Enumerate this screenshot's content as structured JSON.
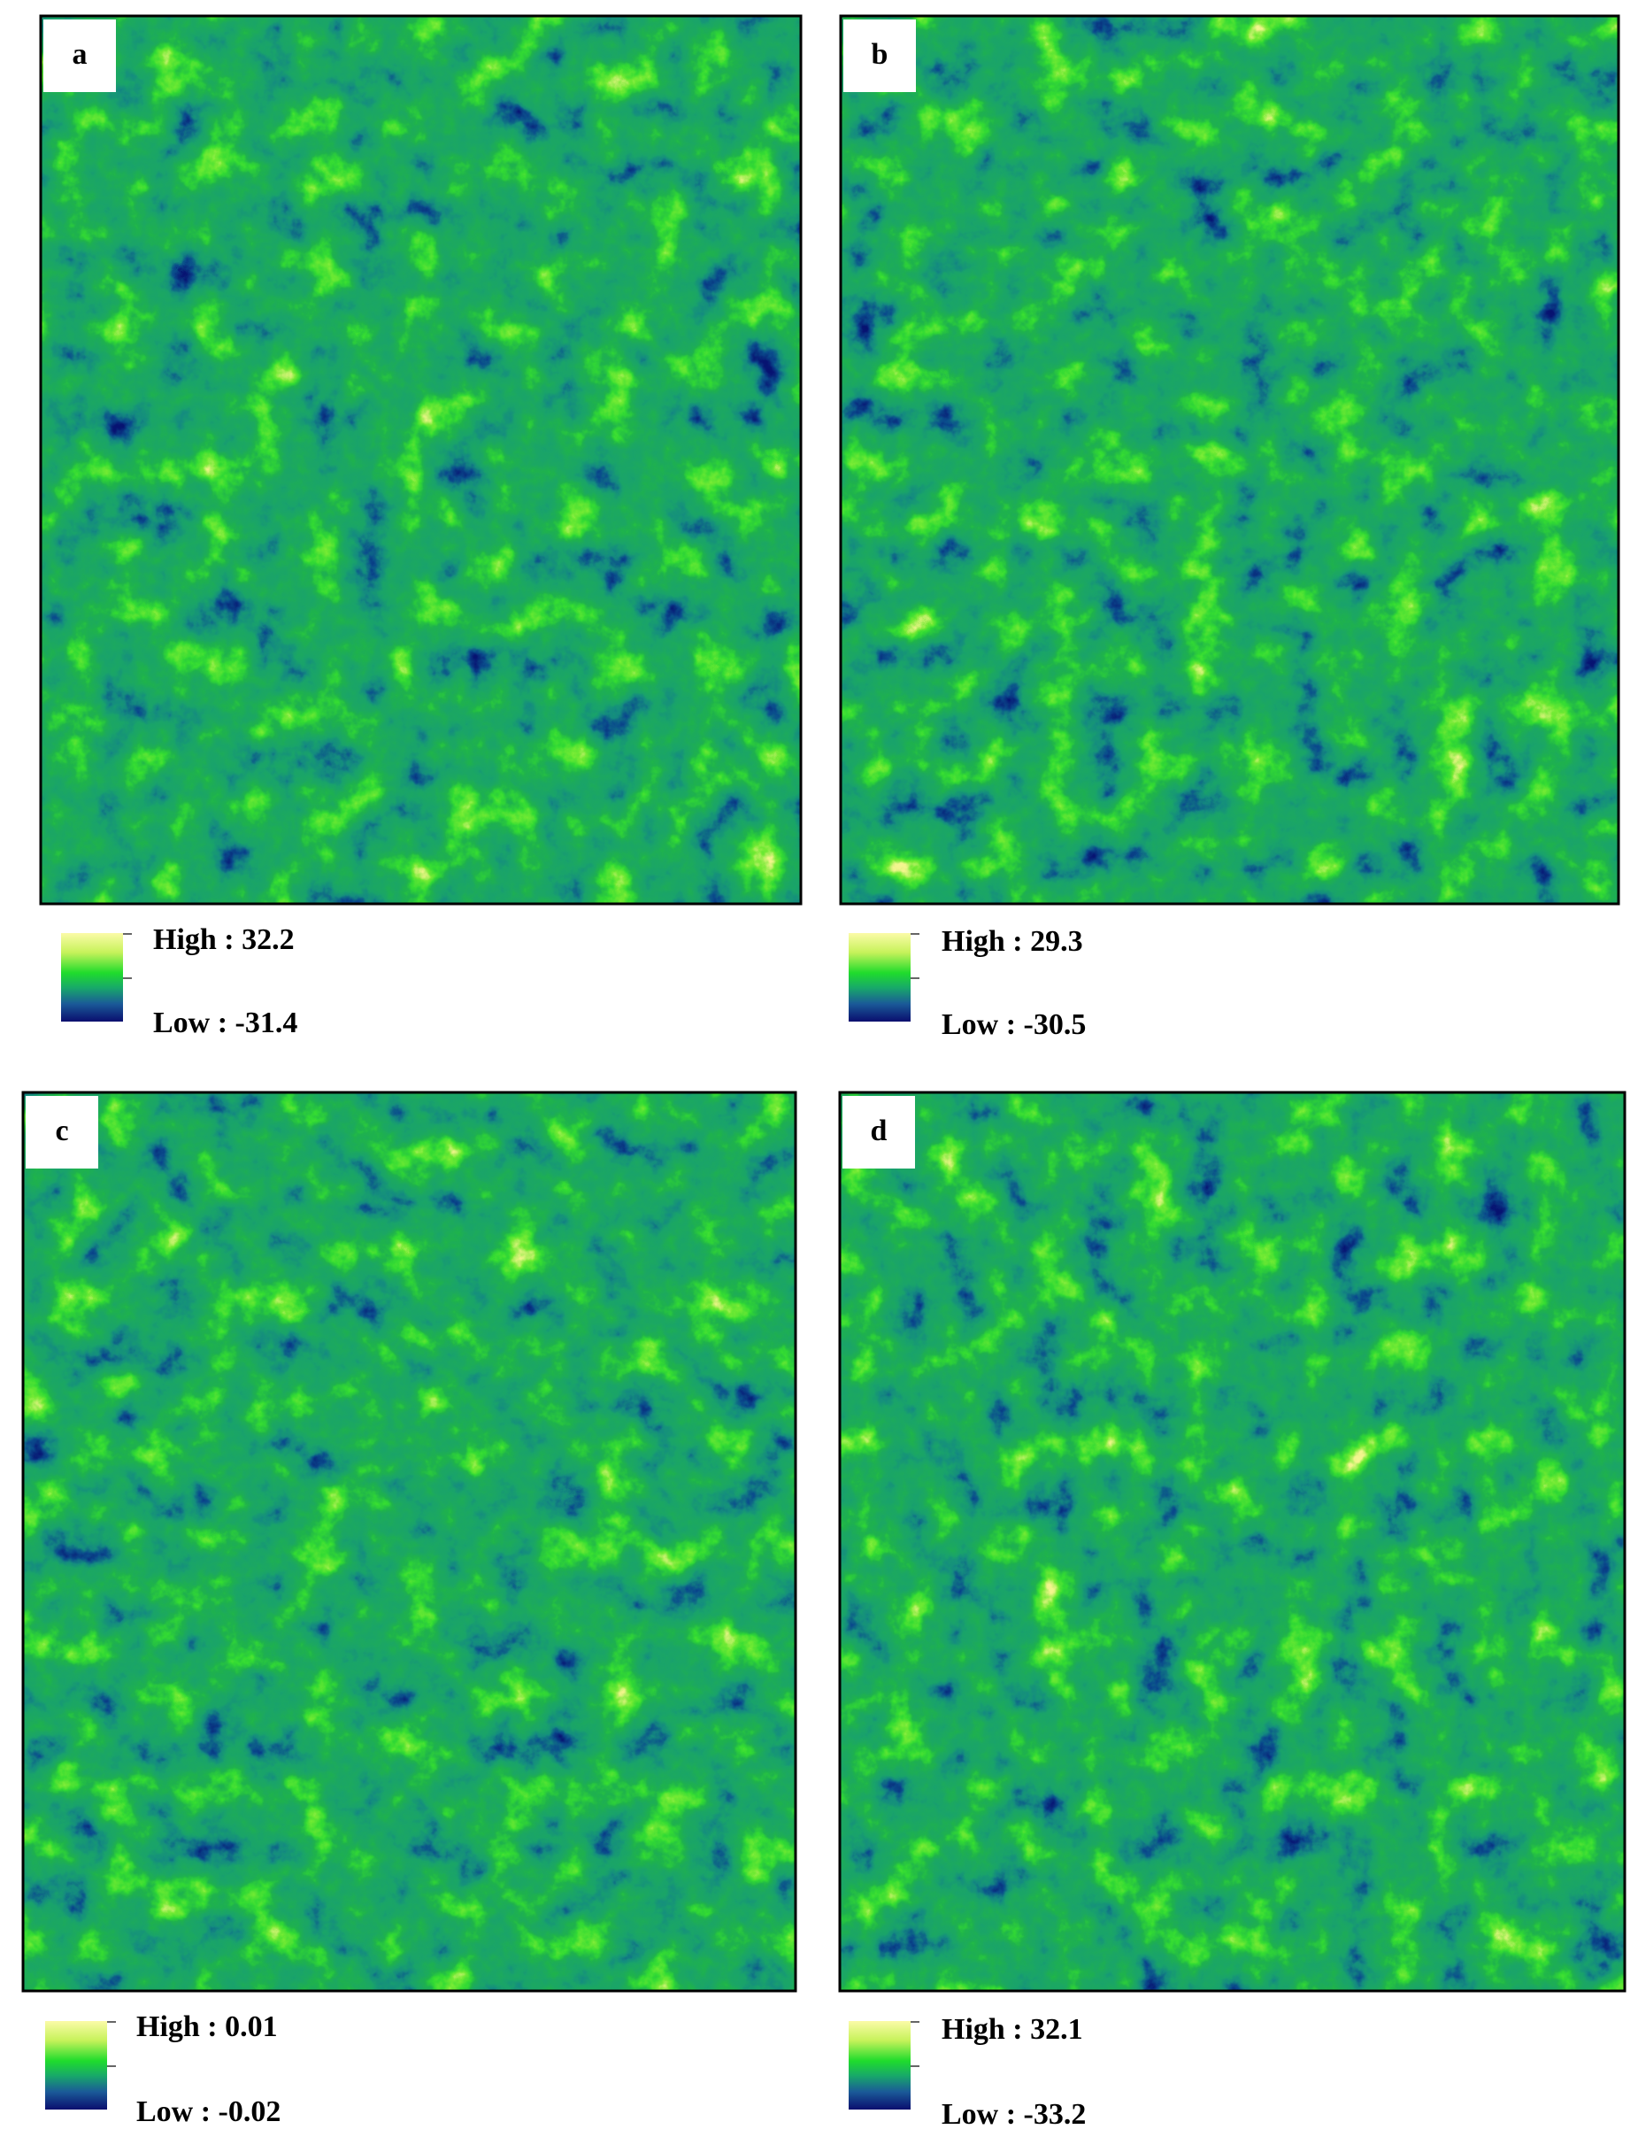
{
  "panels": [
    {
      "label": "a",
      "legend": {
        "high": "High : 32.2",
        "low": "Low : -31.4"
      }
    },
    {
      "label": "b",
      "legend": {
        "high": "High : 29.3",
        "low": "Low : -30.5"
      }
    },
    {
      "label": "c",
      "legend": {
        "high": "High : 0.01",
        "low": "Low : -0.02"
      }
    },
    {
      "label": "d",
      "legend": {
        "high": "High : 32.1",
        "low": "Low : -33.2"
      }
    }
  ]
}
